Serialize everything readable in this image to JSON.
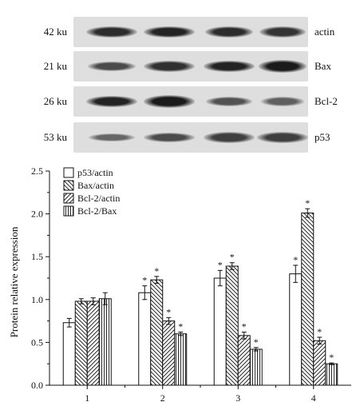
{
  "blot": {
    "rows": [
      {
        "mw": "42 ku",
        "protein": "actin",
        "intensity": [
          0.78,
          0.85,
          0.78,
          0.72
        ],
        "band_width": [
          1.0,
          1.0,
          0.95,
          0.9
        ]
      },
      {
        "mw": "21 ku",
        "protein": "Bax",
        "intensity": [
          0.55,
          0.75,
          0.85,
          0.9
        ],
        "band_width": [
          0.95,
          1.0,
          1.0,
          0.95
        ]
      },
      {
        "mw": "26 ku",
        "protein": "Bcl-2",
        "intensity": [
          0.85,
          0.9,
          0.5,
          0.4
        ],
        "band_width": [
          1.0,
          1.0,
          0.9,
          0.85
        ]
      },
      {
        "mw": "53 ku",
        "protein": "p53",
        "intensity": [
          0.35,
          0.55,
          0.65,
          0.65
        ],
        "band_width": [
          0.9,
          1.0,
          1.0,
          1.0
        ]
      }
    ]
  },
  "chart_data": {
    "type": "bar",
    "categories": [
      "1",
      "2",
      "3",
      "4"
    ],
    "ylabel": "Protein relative expression",
    "xlabel": "",
    "ylim": [
      0,
      2.5
    ],
    "yticks": [
      "0.0",
      "0.5",
      "1.0",
      "1.5",
      "2.0",
      "2.5"
    ],
    "legend_position": "top-left",
    "significance_marker": "*",
    "series": [
      {
        "name": "p53/actin",
        "pattern": "blank",
        "values": [
          0.73,
          1.08,
          1.25,
          1.3
        ],
        "errors": [
          0.05,
          0.08,
          0.09,
          0.1
        ],
        "significant": [
          false,
          true,
          true,
          true
        ]
      },
      {
        "name": "Bax/actin",
        "pattern": "back-hatch",
        "values": [
          0.98,
          1.23,
          1.39,
          2.01
        ],
        "errors": [
          0.03,
          0.04,
          0.04,
          0.05
        ],
        "significant": [
          false,
          true,
          true,
          true
        ]
      },
      {
        "name": "Bcl-2/actin",
        "pattern": "forward-hatch",
        "values": [
          0.98,
          0.75,
          0.58,
          0.52
        ],
        "errors": [
          0.04,
          0.04,
          0.04,
          0.04
        ],
        "significant": [
          false,
          true,
          true,
          true
        ]
      },
      {
        "name": "Bcl-2/Bax",
        "pattern": "vertical-lines",
        "values": [
          1.01,
          0.6,
          0.42,
          0.25
        ],
        "errors": [
          0.07,
          0.02,
          0.02,
          0.01
        ],
        "significant": [
          false,
          true,
          true,
          true
        ]
      }
    ]
  }
}
